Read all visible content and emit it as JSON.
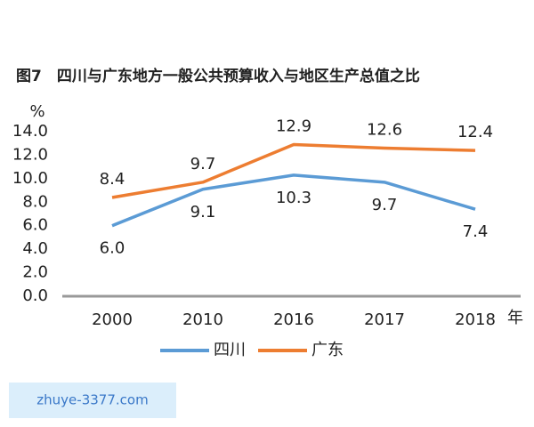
{
  "chart_data": {
    "type": "line",
    "title": "图7　四川与广东地方一般公共预算收入与地区生产总值之比",
    "y_label": "%",
    "x_label": "年",
    "categories": [
      "2000",
      "2010",
      "2016",
      "2017",
      "2018"
    ],
    "series": [
      {
        "name": "四川",
        "color": "#5b9bd5",
        "values": [
          6.0,
          9.1,
          10.3,
          9.7,
          7.4
        ],
        "value_labels": [
          "6.0",
          "9.1",
          "10.3",
          "9.7",
          "7.4"
        ]
      },
      {
        "name": "广东",
        "color": "#ed7d31",
        "values": [
          8.4,
          9.7,
          12.9,
          12.6,
          12.4
        ],
        "value_labels": [
          "8.4",
          "9.7",
          "12.9",
          "12.6",
          "12.4"
        ]
      }
    ],
    "ylim": [
      0,
      14
    ],
    "yticks": [
      {
        "value": 0,
        "label": "0.0"
      },
      {
        "value": 2,
        "label": "2.0"
      },
      {
        "value": 4,
        "label": "4.0"
      },
      {
        "value": 6,
        "label": "6.0"
      },
      {
        "value": 8,
        "label": "8.0"
      },
      {
        "value": 10,
        "label": "10.0"
      },
      {
        "value": 12,
        "label": "12.0"
      },
      {
        "value": 14,
        "label": "14.0"
      }
    ],
    "grid": false,
    "legend": "bottom",
    "watermark": "zhuye-3377.com"
  }
}
